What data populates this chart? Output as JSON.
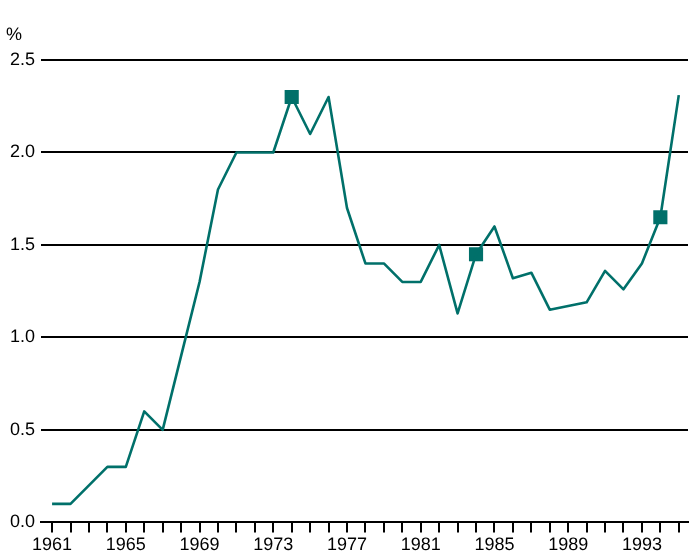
{
  "chart_data": {
    "type": "line",
    "ylabel": "%",
    "x": [
      1961,
      1962,
      1963,
      1964,
      1965,
      1966,
      1967,
      1968,
      1969,
      1970,
      1971,
      1972,
      1973,
      1974,
      1975,
      1976,
      1977,
      1978,
      1979,
      1980,
      1981,
      1982,
      1983,
      1984,
      1985,
      1986,
      1987,
      1988,
      1989,
      1990,
      1991,
      1992,
      1993,
      1994,
      1995
    ],
    "series": [
      {
        "color": "#00706a",
        "marker": "none",
        "values": [
          0.1,
          0.1,
          0.2,
          0.3,
          0.3,
          0.6,
          0.5,
          0.9,
          1.3,
          1.8,
          2.0,
          2.0,
          2.0,
          2.3,
          2.1,
          2.3,
          1.7,
          1.4,
          1.4,
          1.3,
          1.3,
          1.5,
          1.13,
          1.45,
          1.6,
          1.32,
          1.35,
          1.15,
          1.17,
          1.19,
          1.36,
          1.26,
          1.4,
          1.65,
          2.31
        ]
      },
      {
        "type": "scatter",
        "color": "#00706a",
        "marker": "square",
        "x": [
          1974,
          1984,
          1994
        ],
        "values": [
          2.3,
          1.45,
          1.65
        ]
      }
    ],
    "xlim": [
      1960.4,
      1995.5
    ],
    "xticks": [
      1961,
      {
        "value": 1962,
        "label": null
      },
      {
        "value": 1963,
        "label": null
      },
      {
        "value": 1964,
        "label": null
      },
      1965,
      {
        "value": 1966,
        "label": null
      },
      {
        "value": 1967,
        "label": null
      },
      {
        "value": 1968,
        "label": null
      },
      1969,
      {
        "value": 1970,
        "label": null
      },
      {
        "value": 1971,
        "label": null
      },
      {
        "value": 1972,
        "label": null
      },
      1973,
      {
        "value": 1974,
        "label": null
      },
      {
        "value": 1975,
        "label": null
      },
      {
        "value": 1976,
        "label": null
      },
      1977,
      {
        "value": 1978,
        "label": null
      },
      {
        "value": 1979,
        "label": null
      },
      {
        "value": 1980,
        "label": null
      },
      1981,
      {
        "value": 1982,
        "label": null
      },
      {
        "value": 1983,
        "label": null
      },
      {
        "value": 1984,
        "label": null
      },
      1985,
      {
        "value": 1986,
        "label": null
      },
      {
        "value": 1987,
        "label": null
      },
      {
        "value": 1988,
        "label": null
      },
      1989,
      {
        "value": 1990,
        "label": null
      },
      {
        "value": 1991,
        "label": null
      },
      {
        "value": 1992,
        "label": null
      },
      1993,
      {
        "value": 1994,
        "label": null
      },
      {
        "value": 1995,
        "label": null
      }
    ],
    "ylim": [
      0,
      2.5
    ],
    "yticks": [
      {
        "value": 0,
        "label": "0.0"
      },
      0.5,
      {
        "value": 1,
        "label": "1.0"
      },
      1.5,
      {
        "value": 2,
        "label": "2.0"
      },
      2.5
    ],
    "grid": "y",
    "legend": false
  }
}
